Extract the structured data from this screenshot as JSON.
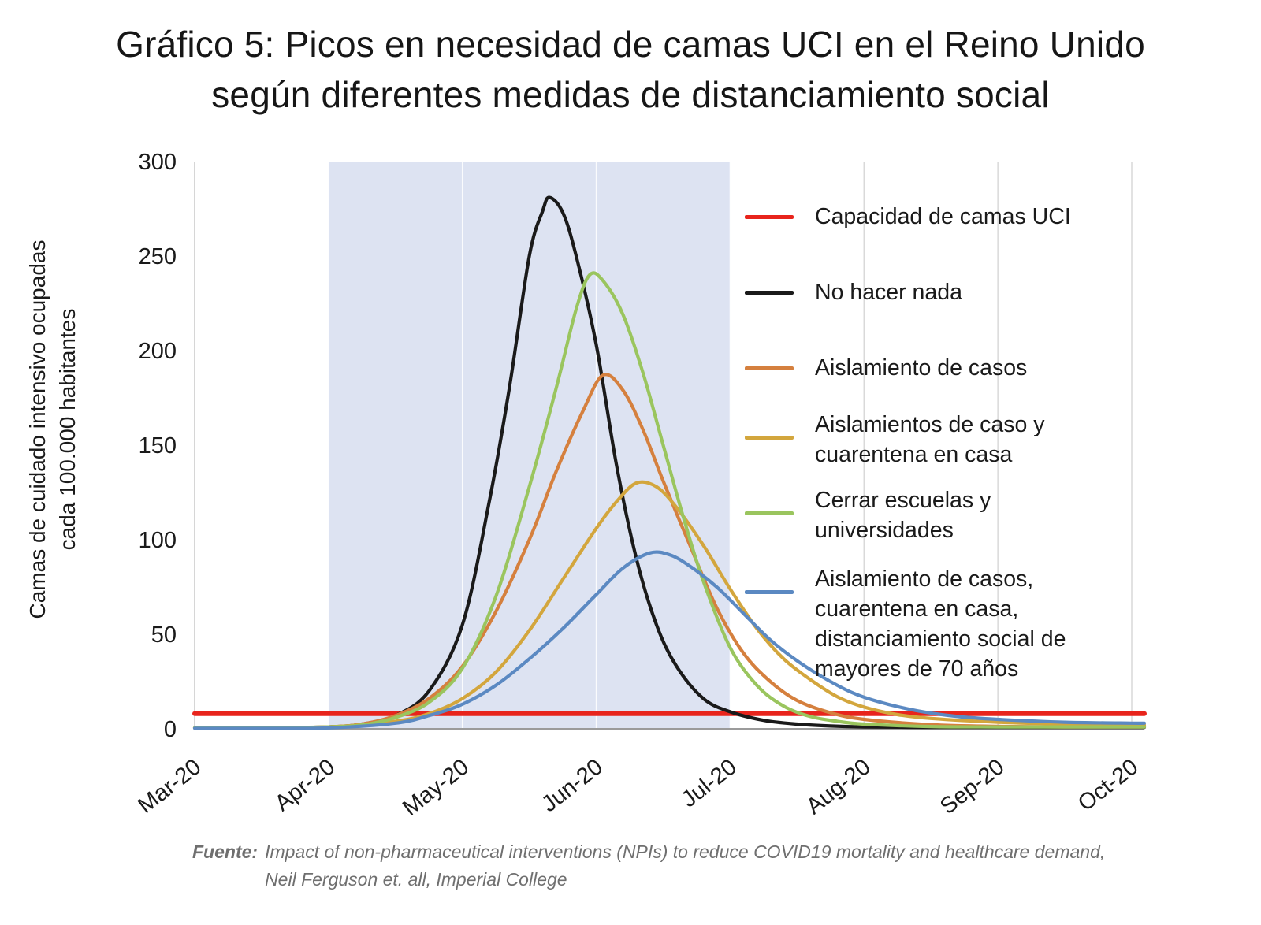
{
  "source": {
    "label": "Fuente:",
    "text": "Impact of non-pharmaceutical interventions (NPIs) to reduce COVID19 mortality and healthcare demand, Neil Ferguson et. all, Imperial College"
  },
  "chart_data": {
    "type": "line",
    "title": "Gráfico 5: Picos en necesidad de camas UCI en el Reino Unido según diferentes medidas de distanciamiento social",
    "ylabel": "Camas de cuidado intensivo ocupadas cada 100.000 habitantes",
    "ylabel_lines": [
      "Camas de cuidado intensivo ocupadas",
      "cada 100.000 habitantes"
    ],
    "xlabel": "",
    "ylim": [
      0,
      300
    ],
    "yticks": [
      0,
      50,
      100,
      150,
      200,
      250,
      300
    ],
    "xticks": [
      "Mar-20",
      "Apr-20",
      "May-20",
      "Jun-20",
      "Jul-20",
      "Aug-20",
      "Sep-20",
      "Oct-20"
    ],
    "x_note": "x values in series points = months after Mar-20",
    "grid": "vertical gridlines at each month",
    "legend_position": "inside right",
    "shaded_region": {
      "x_from": 1,
      "x_to": 4,
      "from_label": "Apr-20",
      "to_label": "Jul-20",
      "color": "#dde3f2"
    },
    "capacity_line": {
      "label": "Capacidad de camas UCI",
      "value": 8,
      "color": "#e8241c"
    },
    "series": [
      {
        "key": "no-hacer-nada",
        "name": "No hacer nada",
        "color": "#1a1a1a",
        "peak": {
          "value": 281,
          "month": "mid-May-20"
        },
        "points": [
          [
            0,
            0.5
          ],
          [
            0.5,
            0.5
          ],
          [
            1,
            1
          ],
          [
            1.25,
            2.5
          ],
          [
            1.5,
            7
          ],
          [
            1.75,
            20
          ],
          [
            2,
            55
          ],
          [
            2.2,
            120
          ],
          [
            2.35,
            180
          ],
          [
            2.5,
            250
          ],
          [
            2.6,
            274
          ],
          [
            2.65,
            281
          ],
          [
            2.75,
            273
          ],
          [
            2.85,
            250
          ],
          [
            3,
            203
          ],
          [
            3.15,
            140
          ],
          [
            3.3,
            90
          ],
          [
            3.45,
            55
          ],
          [
            3.6,
            33
          ],
          [
            3.8,
            16
          ],
          [
            4,
            9
          ],
          [
            4.25,
            4.5
          ],
          [
            4.5,
            2.5
          ],
          [
            4.75,
            1.5
          ],
          [
            5,
            1
          ],
          [
            5.5,
            0.8
          ],
          [
            6,
            0.8
          ],
          [
            6.5,
            0.8
          ],
          [
            7,
            0.8
          ]
        ]
      },
      {
        "key": "aislamiento-de-casos",
        "name": "Aislamiento de casos",
        "color": "#d5803e",
        "peak": {
          "value": 187,
          "month": "early-Jun-20"
        },
        "points": [
          [
            0,
            0.5
          ],
          [
            0.5,
            0.5
          ],
          [
            1,
            1
          ],
          [
            1.25,
            2.5
          ],
          [
            1.5,
            7
          ],
          [
            1.75,
            16
          ],
          [
            2,
            33
          ],
          [
            2.25,
            62
          ],
          [
            2.5,
            100
          ],
          [
            2.7,
            136
          ],
          [
            2.9,
            168
          ],
          [
            3.05,
            187
          ],
          [
            3.2,
            179
          ],
          [
            3.35,
            158
          ],
          [
            3.5,
            131
          ],
          [
            3.7,
            97
          ],
          [
            3.9,
            64
          ],
          [
            4.1,
            40
          ],
          [
            4.3,
            25
          ],
          [
            4.5,
            15
          ],
          [
            4.75,
            8.5
          ],
          [
            5,
            5
          ],
          [
            5.5,
            2.2
          ],
          [
            6,
            1.3
          ],
          [
            6.5,
            1
          ],
          [
            7,
            1
          ]
        ]
      },
      {
        "key": "aislamiento-y-cuarentena",
        "name": "Aislamientos de caso y cuarentena en casa",
        "color": "#d3a63d",
        "peak": {
          "value": 130,
          "month": "mid-Jun-20"
        },
        "points": [
          [
            0,
            0.5
          ],
          [
            0.5,
            0.5
          ],
          [
            1,
            1
          ],
          [
            1.5,
            4
          ],
          [
            1.75,
            8
          ],
          [
            2,
            16
          ],
          [
            2.25,
            30
          ],
          [
            2.5,
            52
          ],
          [
            2.75,
            79
          ],
          [
            3,
            106
          ],
          [
            3.15,
            120
          ],
          [
            3.3,
            130
          ],
          [
            3.45,
            128
          ],
          [
            3.6,
            117
          ],
          [
            3.8,
            97
          ],
          [
            4,
            74
          ],
          [
            4.2,
            53
          ],
          [
            4.4,
            37
          ],
          [
            4.6,
            26
          ],
          [
            4.8,
            17
          ],
          [
            5,
            11.5
          ],
          [
            5.25,
            7.5
          ],
          [
            5.5,
            5.5
          ],
          [
            6,
            3.5
          ],
          [
            6.5,
            2.5
          ],
          [
            7,
            2
          ]
        ]
      },
      {
        "key": "cerrar-escuelas",
        "name": "Cerrar escuelas y universidades",
        "color": "#9ac55e",
        "peak": {
          "value": 240,
          "month": "late-May-20"
        },
        "points": [
          [
            0,
            0.5
          ],
          [
            0.5,
            0.5
          ],
          [
            1,
            1
          ],
          [
            1.25,
            2
          ],
          [
            1.5,
            6
          ],
          [
            1.75,
            14
          ],
          [
            2,
            32
          ],
          [
            2.25,
            70
          ],
          [
            2.5,
            128
          ],
          [
            2.7,
            180
          ],
          [
            2.85,
            222
          ],
          [
            2.95,
            240
          ],
          [
            3.05,
            237
          ],
          [
            3.2,
            219
          ],
          [
            3.35,
            188
          ],
          [
            3.5,
            150
          ],
          [
            3.65,
            112
          ],
          [
            3.8,
            78
          ],
          [
            4,
            43
          ],
          [
            4.2,
            23
          ],
          [
            4.4,
            12
          ],
          [
            4.6,
            6.5
          ],
          [
            4.8,
            4
          ],
          [
            5,
            2.5
          ],
          [
            5.5,
            1.2
          ],
          [
            6,
            1
          ],
          [
            6.5,
            1
          ],
          [
            7,
            1
          ]
        ]
      },
      {
        "key": "aislamiento-cuarentena-distanciamiento-70",
        "name": "Aislamiento de casos, cuarentena en casa, distanciamiento social de mayores de 70 años",
        "color": "#5b89c2",
        "peak": {
          "value": 93,
          "month": "mid-Jun-20"
        },
        "points": [
          [
            0,
            0.3
          ],
          [
            0.5,
            0.3
          ],
          [
            1,
            0.5
          ],
          [
            1.5,
            3
          ],
          [
            1.75,
            7
          ],
          [
            2,
            13
          ],
          [
            2.25,
            23
          ],
          [
            2.5,
            37
          ],
          [
            2.75,
            53
          ],
          [
            3,
            71
          ],
          [
            3.2,
            85
          ],
          [
            3.4,
            93
          ],
          [
            3.55,
            92
          ],
          [
            3.7,
            86
          ],
          [
            3.9,
            75
          ],
          [
            4.1,
            61
          ],
          [
            4.3,
            47
          ],
          [
            4.5,
            36
          ],
          [
            4.7,
            27
          ],
          [
            4.9,
            19.5
          ],
          [
            5.1,
            14.5
          ],
          [
            5.4,
            9.5
          ],
          [
            5.7,
            6.5
          ],
          [
            6,
            5
          ],
          [
            6.5,
            3.5
          ],
          [
            7,
            3
          ]
        ]
      }
    ]
  }
}
